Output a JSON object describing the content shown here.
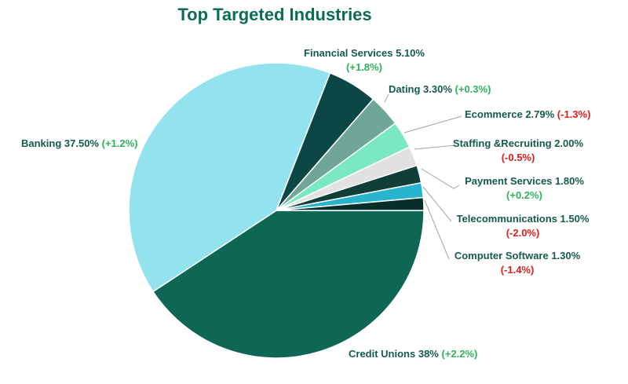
{
  "chart_data": {
    "type": "pie",
    "title": "Top Targeted Industries",
    "slices": [
      {
        "label": "Banking",
        "value_text": "37.50%",
        "change": "(+1.2%)",
        "value": 37.5,
        "color": "#93e3ef"
      },
      {
        "label": "Financial Services",
        "value_text": "5.10%",
        "change": "(+1.8%)",
        "value": 5.1,
        "color": "#0c4745"
      },
      {
        "label": "Dating",
        "value_text": "3.30%",
        "change": "(+0.3%)",
        "value": 3.3,
        "color": "#6fa697"
      },
      {
        "label": "Ecommerce",
        "value_text": "2.79%",
        "change": "(-1.3%)",
        "value": 2.79,
        "color": "#7ae8c2"
      },
      {
        "label": "Staffing &Recruiting",
        "value_text": "2.00%",
        "change": "(-0.5%)",
        "value": 2.0,
        "color": "#e2e2e2"
      },
      {
        "label": "Payment Services",
        "value_text": "1.80%",
        "change": "(+0.2%)",
        "value": 1.8,
        "color": "#0f3f38"
      },
      {
        "label": "Telecommunications",
        "value_text": "1.50%",
        "change": "(-2.0%)",
        "value": 1.5,
        "color": "#27b4cc"
      },
      {
        "label": "Computer Software",
        "value_text": "1.30%",
        "change": "(-1.4%)",
        "value": 1.3,
        "color": "#082e29"
      },
      {
        "label": "Credit Unions",
        "value_text": "38%",
        "change": "(+2.2%)",
        "value": 38.0,
        "color": "#0e6655"
      }
    ]
  }
}
